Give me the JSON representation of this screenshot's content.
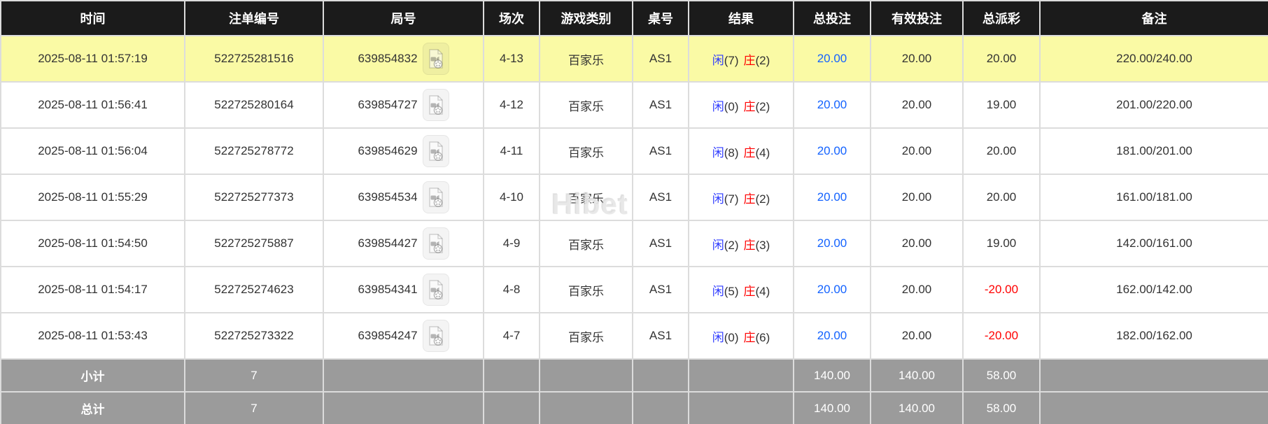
{
  "colors": {
    "highlight": "#fafaa5",
    "header_bg": "#1b1b1b",
    "footer_bg": "#9b9b9b",
    "link_blue": "#1463ff",
    "player_blue": "#2e3bff",
    "banker_red": "#ff0000",
    "negative_red": "#ff0000",
    "border": "#dcdcdc",
    "text": "#333333"
  },
  "watermark": {
    "text": "Hibet"
  },
  "icons": {
    "round_video": "video-replay-icon"
  },
  "table": {
    "columns": [
      {
        "key": "time",
        "label": "时间"
      },
      {
        "key": "bet-id",
        "label": "注单编号"
      },
      {
        "key": "round",
        "label": "局号"
      },
      {
        "key": "session",
        "label": "场次"
      },
      {
        "key": "game-type",
        "label": "游戏类别"
      },
      {
        "key": "table-no",
        "label": "桌号"
      },
      {
        "key": "result",
        "label": "结果"
      },
      {
        "key": "total-bet",
        "label": "总投注"
      },
      {
        "key": "valid-bet",
        "label": "有效投注"
      },
      {
        "key": "payout",
        "label": "总派彩"
      },
      {
        "key": "remark",
        "label": "备注"
      }
    ],
    "rows": [
      {
        "time": "2025-08-11 01:57:19",
        "bet_id": "522725281516",
        "round_no": "639854832",
        "session": "4-13",
        "game_type": "百家乐",
        "table_no": "AS1",
        "player_label": "闲",
        "player_score": "(7)",
        "banker_label": "庄",
        "banker_score": "(2)",
        "total_bet": "20.00",
        "valid_bet": "20.00",
        "payout": "20.00",
        "remark": "220.00/240.00",
        "highlighted": true
      },
      {
        "time": "2025-08-11 01:56:41",
        "bet_id": "522725280164",
        "round_no": "639854727",
        "session": "4-12",
        "game_type": "百家乐",
        "table_no": "AS1",
        "player_label": "闲",
        "player_score": "(0)",
        "banker_label": "庄",
        "banker_score": "(2)",
        "total_bet": "20.00",
        "valid_bet": "20.00",
        "payout": "19.00",
        "remark": "201.00/220.00",
        "highlighted": false
      },
      {
        "time": "2025-08-11 01:56:04",
        "bet_id": "522725278772",
        "round_no": "639854629",
        "session": "4-11",
        "game_type": "百家乐",
        "table_no": "AS1",
        "player_label": "闲",
        "player_score": "(8)",
        "banker_label": "庄",
        "banker_score": "(4)",
        "total_bet": "20.00",
        "valid_bet": "20.00",
        "payout": "20.00",
        "remark": "181.00/201.00",
        "highlighted": false
      },
      {
        "time": "2025-08-11 01:55:29",
        "bet_id": "522725277373",
        "round_no": "639854534",
        "session": "4-10",
        "game_type": "百家乐",
        "table_no": "AS1",
        "player_label": "闲",
        "player_score": "(7)",
        "banker_label": "庄",
        "banker_score": "(2)",
        "total_bet": "20.00",
        "valid_bet": "20.00",
        "payout": "20.00",
        "remark": "161.00/181.00",
        "highlighted": false
      },
      {
        "time": "2025-08-11 01:54:50",
        "bet_id": "522725275887",
        "round_no": "639854427",
        "session": "4-9",
        "game_type": "百家乐",
        "table_no": "AS1",
        "player_label": "闲",
        "player_score": "(2)",
        "banker_label": "庄",
        "banker_score": "(3)",
        "total_bet": "20.00",
        "valid_bet": "20.00",
        "payout": "19.00",
        "remark": "142.00/161.00",
        "highlighted": false
      },
      {
        "time": "2025-08-11 01:54:17",
        "bet_id": "522725274623",
        "round_no": "639854341",
        "session": "4-8",
        "game_type": "百家乐",
        "table_no": "AS1",
        "player_label": "闲",
        "player_score": "(5)",
        "banker_label": "庄",
        "banker_score": "(4)",
        "total_bet": "20.00",
        "valid_bet": "20.00",
        "payout": "-20.00",
        "remark": "162.00/142.00",
        "highlighted": false
      },
      {
        "time": "2025-08-11 01:53:43",
        "bet_id": "522725273322",
        "round_no": "639854247",
        "session": "4-7",
        "game_type": "百家乐",
        "table_no": "AS1",
        "player_label": "闲",
        "player_score": "(0)",
        "banker_label": "庄",
        "banker_score": "(6)",
        "total_bet": "20.00",
        "valid_bet": "20.00",
        "payout": "-20.00",
        "remark": "182.00/162.00",
        "highlighted": false
      }
    ],
    "footer_rows": [
      {
        "key": "subtotal",
        "label": "小计",
        "count": "7",
        "total_bet": "140.00",
        "valid_bet": "140.00",
        "payout": "58.00"
      },
      {
        "key": "total",
        "label": "总计",
        "count": "7",
        "total_bet": "140.00",
        "valid_bet": "140.00",
        "payout": "58.00"
      }
    ]
  }
}
